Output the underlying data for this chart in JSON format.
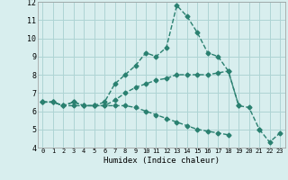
{
  "xlabel": "Humidex (Indice chaleur)",
  "hours": [
    0,
    1,
    2,
    3,
    4,
    5,
    6,
    7,
    8,
    9,
    10,
    11,
    12,
    13,
    14,
    15,
    16,
    17,
    18,
    19,
    20,
    21,
    22,
    23
  ],
  "line_max": [
    6.5,
    6.5,
    6.3,
    6.5,
    6.3,
    6.3,
    6.5,
    7.5,
    8.0,
    8.5,
    9.2,
    9.0,
    9.5,
    11.8,
    11.2,
    10.3,
    9.2,
    9.0,
    8.2,
    6.3,
    null,
    null,
    null,
    null
  ],
  "line_mean": [
    6.5,
    6.5,
    6.3,
    6.5,
    6.3,
    6.3,
    6.3,
    6.6,
    7.0,
    7.3,
    7.5,
    7.7,
    7.8,
    8.0,
    8.0,
    8.0,
    8.0,
    8.1,
    8.2,
    6.3,
    6.2,
    5.0,
    null,
    null
  ],
  "line_min": [
    6.5,
    6.5,
    6.3,
    6.3,
    6.3,
    6.3,
    6.3,
    6.3,
    6.3,
    6.2,
    6.0,
    5.8,
    5.6,
    5.4,
    5.2,
    5.0,
    4.9,
    4.8,
    4.7,
    null,
    null,
    5.0,
    4.3,
    4.8
  ],
  "color": "#2a8070",
  "bg_color": "#d8eeee",
  "grid_color": "#aed4d4",
  "ylim": [
    4,
    12
  ],
  "yticks": [
    4,
    5,
    6,
    7,
    8,
    9,
    10,
    11,
    12
  ],
  "xlim": [
    -0.5,
    23.5
  ],
  "xticks": [
    0,
    1,
    2,
    3,
    4,
    5,
    6,
    7,
    8,
    9,
    10,
    11,
    12,
    13,
    14,
    15,
    16,
    17,
    18,
    19,
    20,
    21,
    22,
    23
  ],
  "markersize": 2.5,
  "linewidth": 1.0
}
